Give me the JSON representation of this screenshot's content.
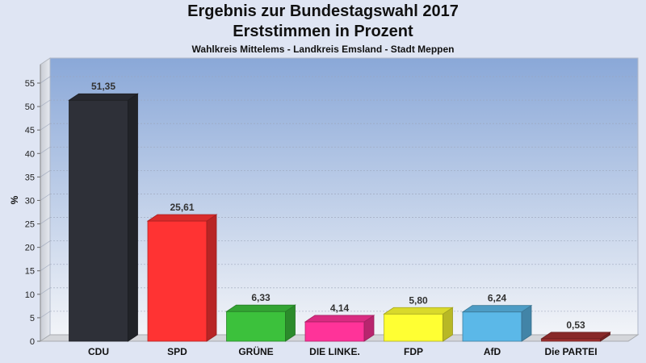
{
  "chart_data": {
    "type": "bar",
    "title": "Ergebnis zur Bundestagswahl 2017",
    "subtitle": "Erststimmen in Prozent",
    "caption": "Wahlkreis Mittelems - Landkreis Emsland - Stadt Meppen",
    "ylabel": "%",
    "xlabel": "",
    "ylim": [
      0,
      58
    ],
    "yticks": [
      0,
      5,
      10,
      15,
      20,
      25,
      30,
      35,
      40,
      45,
      50,
      55
    ],
    "grid": true,
    "categories": [
      "CDU",
      "SPD",
      "GRÜNE",
      "DIE LINKE.",
      "FDP",
      "AfD",
      "Die PARTEI"
    ],
    "values": [
      51.35,
      25.61,
      6.33,
      4.14,
      5.8,
      6.24,
      0.53
    ],
    "value_labels": [
      "51,35",
      "25,61",
      "6,33",
      "4,14",
      "5,80",
      "6,24",
      "0,53"
    ],
    "colors": [
      "#2e3038",
      "#ff3333",
      "#3cc13c",
      "#ff3399",
      "#ffff33",
      "#5bb8e8",
      "#a03030"
    ]
  }
}
